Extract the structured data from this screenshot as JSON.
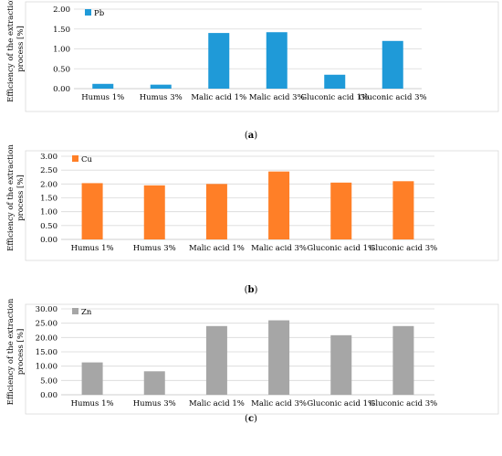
{
  "chart_data": [
    {
      "type": "bar",
      "panel": "a",
      "caption": "(a)",
      "ylabel": "Efficiency of the extraction process [%]",
      "ylim": [
        0,
        2.0
      ],
      "yticks": [
        "0.00",
        "0.50",
        "1.00",
        "1.50",
        "2.00"
      ],
      "categories": [
        "Humus 1%",
        "Humus 3%",
        "Malic acid 1%",
        "Malic acid 3%",
        "Gluconic acid 1%",
        "Gluconic acid 3%"
      ],
      "series": [
        {
          "name": "Pb",
          "color": "#1f9ad8",
          "values": [
            0.12,
            0.1,
            1.4,
            1.42,
            0.35,
            1.2
          ]
        }
      ],
      "legend": "top-left",
      "grid": true
    },
    {
      "type": "bar",
      "panel": "b",
      "caption": "(b)",
      "ylabel": "Efficiency of the extraction process [%]",
      "ylim": [
        0,
        3.0
      ],
      "yticks": [
        "0.00",
        "0.50",
        "1.00",
        "1.50",
        "2.00",
        "2.50",
        "3.00"
      ],
      "categories": [
        "Humus 1%",
        "Humus 3%",
        "Malic acid 1%",
        "Malic acid 3%",
        "Gluconic acid 1%",
        "Gluconic acid 3%"
      ],
      "series": [
        {
          "name": "Cu",
          "color": "#ff7f27",
          "values": [
            2.03,
            1.95,
            2.0,
            2.45,
            2.05,
            2.1
          ]
        }
      ],
      "legend": "top-left",
      "grid": true
    },
    {
      "type": "bar",
      "panel": "c",
      "caption": "(c)",
      "ylabel": "Efficiency of the extraction process [%]",
      "ylim": [
        0,
        30.0
      ],
      "yticks": [
        "0.00",
        "5.00",
        "10.00",
        "15.00",
        "20.00",
        "25.00",
        "30.00"
      ],
      "categories": [
        "Humus 1%",
        "Humus 3%",
        "Malic acid 1%",
        "Malic acid 3%",
        "Gluconic acid 1%",
        "Gluconic acid 3%"
      ],
      "series": [
        {
          "name": "Zn",
          "color": "#a6a6a6",
          "values": [
            11.3,
            8.2,
            24.0,
            26.0,
            20.8,
            24.0
          ]
        }
      ],
      "legend": "top-left",
      "grid": true
    }
  ]
}
